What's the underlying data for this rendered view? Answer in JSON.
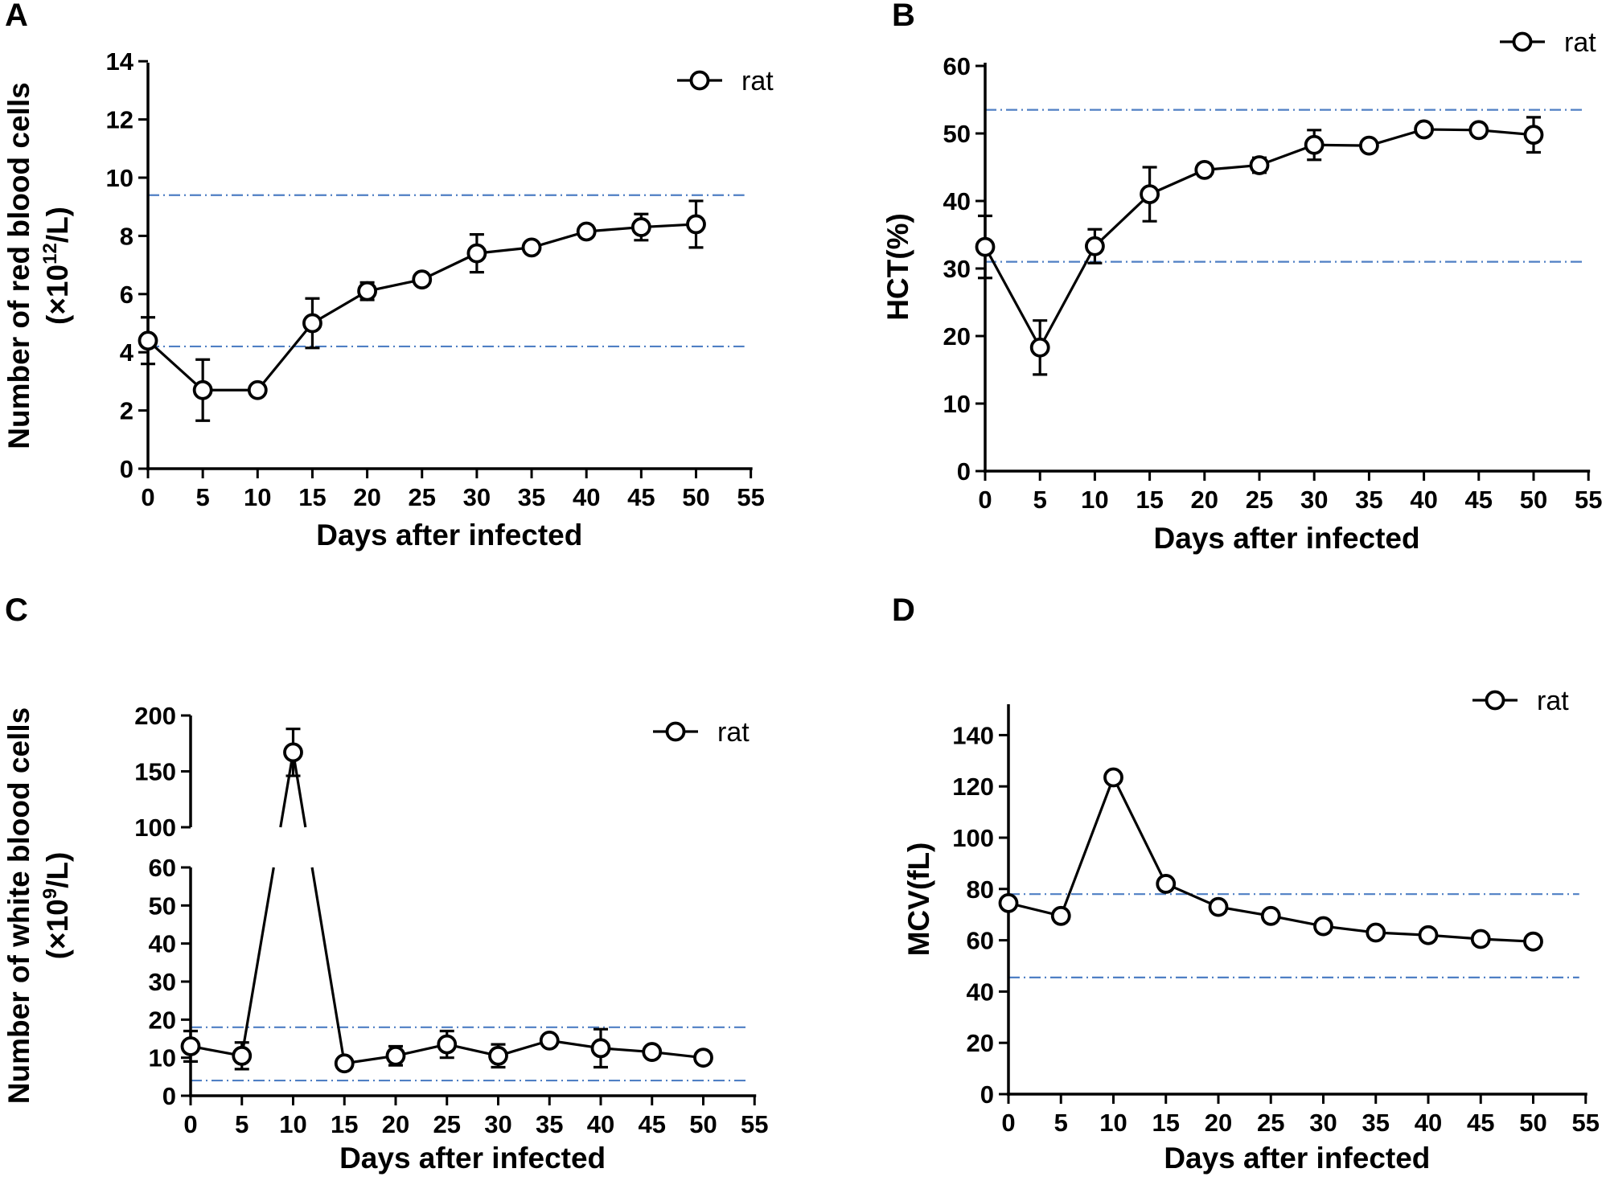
{
  "chart_data": [
    {
      "panel": "A",
      "type": "line",
      "ylabel_line1": "Number of red blood cells",
      "ylabel_line2": "(×10^12/L)",
      "xlabel": "Days after infected",
      "xlim": [
        0,
        55
      ],
      "ylim": [
        0,
        14
      ],
      "xticks": [
        "0",
        "5",
        "10",
        "15",
        "20",
        "25",
        "30",
        "35",
        "40",
        "45",
        "50",
        "55"
      ],
      "yticks": [
        "0",
        "2",
        "4",
        "6",
        "8",
        "10",
        "12",
        "14"
      ],
      "reference_lines": [
        4.2,
        9.4
      ],
      "legend": "rat",
      "legend_position": "top-right",
      "series": [
        {
          "name": "rat",
          "x": [
            0,
            5,
            10,
            15,
            20,
            25,
            30,
            35,
            40,
            45,
            50
          ],
          "y": [
            4.4,
            2.7,
            2.7,
            5.0,
            6.1,
            6.5,
            7.4,
            7.6,
            8.15,
            8.3,
            8.4
          ],
          "err": [
            0.8,
            1.05,
            0.15,
            0.85,
            0.3,
            0.15,
            0.65,
            0.15,
            0.2,
            0.45,
            0.8
          ]
        }
      ]
    },
    {
      "panel": "B",
      "type": "line",
      "ylabel_line1": "HCT(%)",
      "xlabel": "Days after infected",
      "xlim": [
        0,
        55
      ],
      "ylim": [
        0,
        60
      ],
      "xticks": [
        "0",
        "5",
        "10",
        "15",
        "20",
        "25",
        "30",
        "35",
        "40",
        "45",
        "50",
        "55"
      ],
      "yticks": [
        "0",
        "10",
        "20",
        "30",
        "40",
        "50",
        "60"
      ],
      "reference_lines": [
        31,
        53.5
      ],
      "legend": "rat",
      "legend_position": "top-right",
      "series": [
        {
          "name": "rat",
          "x": [
            0,
            5,
            10,
            15,
            20,
            25,
            30,
            35,
            40,
            45,
            50
          ],
          "y": [
            33.2,
            18.3,
            33.3,
            41.0,
            44.6,
            45.3,
            48.3,
            48.2,
            50.6,
            50.5,
            49.8
          ],
          "err": [
            4.6,
            4.0,
            2.5,
            4.0,
            0.9,
            1.1,
            2.2,
            0.5,
            0.6,
            0.6,
            2.6
          ]
        }
      ]
    },
    {
      "panel": "C",
      "type": "line",
      "ylabel_line1": "Number of white blood cells",
      "ylabel_line2": "(×10^9/L)",
      "xlabel": "Days after infected",
      "xlim": [
        0,
        55
      ],
      "ylim": [
        0,
        200
      ],
      "axis_break": [
        60,
        100
      ],
      "xticks": [
        "0",
        "5",
        "10",
        "15",
        "20",
        "25",
        "30",
        "35",
        "40",
        "45",
        "50",
        "55"
      ],
      "yticks": [
        "0",
        "10",
        "20",
        "30",
        "40",
        "50",
        "60",
        "100",
        "150",
        "200"
      ],
      "reference_lines": [
        4,
        18
      ],
      "legend": "rat",
      "legend_position": "top-right",
      "series": [
        {
          "name": "rat",
          "x": [
            0,
            5,
            10,
            15,
            20,
            25,
            30,
            35,
            40,
            45,
            50
          ],
          "y": [
            13,
            10.5,
            167,
            8.5,
            10.5,
            13.5,
            10.5,
            14.5,
            12.5,
            11.5,
            10
          ],
          "err": [
            4,
            3.5,
            21,
            1,
            2.5,
            3.5,
            3,
            1,
            5,
            1,
            1
          ]
        }
      ]
    },
    {
      "panel": "D",
      "type": "line",
      "ylabel_line1": "MCV(fL)",
      "xlabel": "Days after infected",
      "xlim": [
        0,
        55
      ],
      "ylim": [
        0,
        150
      ],
      "xticks": [
        "0",
        "5",
        "10",
        "15",
        "20",
        "25",
        "30",
        "35",
        "40",
        "45",
        "50",
        "55"
      ],
      "yticks": [
        "0",
        "20",
        "40",
        "60",
        "80",
        "100",
        "120",
        "140"
      ],
      "reference_lines": [
        45.5,
        78
      ],
      "legend": "rat",
      "legend_position": "top-right",
      "series": [
        {
          "name": "rat",
          "x": [
            0,
            5,
            10,
            15,
            20,
            25,
            30,
            35,
            40,
            45,
            50
          ],
          "y": [
            74.5,
            69.5,
            123.5,
            82,
            73,
            69.5,
            65.5,
            63,
            62,
            60.5,
            59.5
          ],
          "err": [
            0,
            0,
            0,
            0,
            0,
            0,
            0,
            0,
            0,
            0,
            0
          ]
        }
      ]
    }
  ],
  "colors": {
    "reference_line": "#4f7fc4",
    "series": "#000000"
  }
}
